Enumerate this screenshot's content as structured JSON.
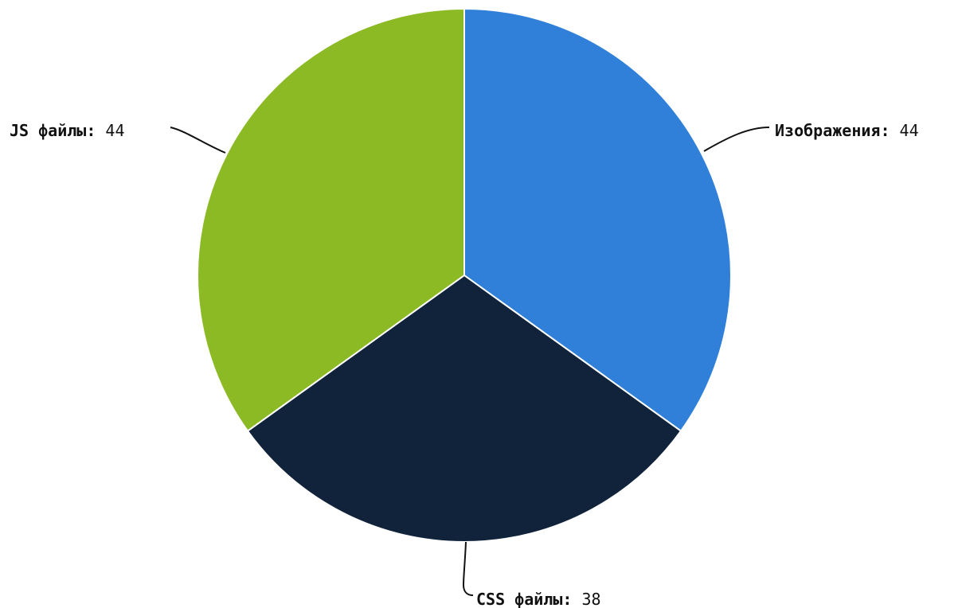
{
  "chart_data": {
    "type": "pie",
    "title": "",
    "separator": ": ",
    "slices": [
      {
        "label": "Изображения",
        "value": 44,
        "color": "#3080d9"
      },
      {
        "label": "CSS файлы",
        "value": 38,
        "color": "#10233a"
      },
      {
        "label": "JS файлы",
        "value": 44,
        "color": "#8cba25"
      }
    ],
    "start_angle": "12 o'clock",
    "direction": "clockwise",
    "legend": "none",
    "labels": "outside with leader lines"
  }
}
